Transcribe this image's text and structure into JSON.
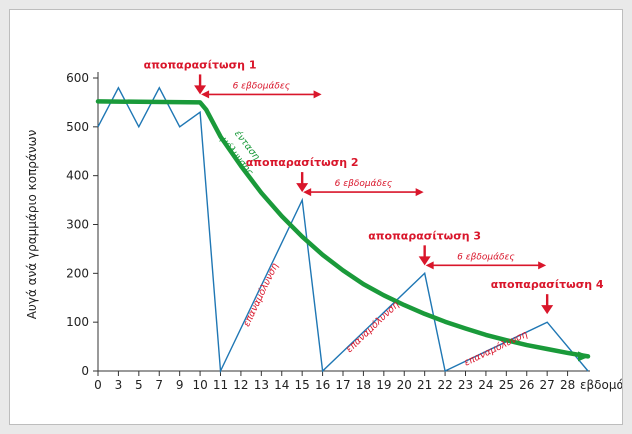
{
  "chart_data": {
    "type": "line",
    "ylabel": "Αυγά ανά γραμμάριο κοπράνων",
    "xlabel_suffix": "εβδομάδες",
    "ylim": [
      0,
      600
    ],
    "y_ticks": [
      0,
      100,
      200,
      300,
      400,
      500,
      600
    ],
    "x_tick_labels": [
      "0",
      "3",
      "5",
      "7",
      "9",
      "10",
      "11",
      "12",
      "13",
      "14",
      "15",
      "16",
      "17",
      "18",
      "19",
      "20",
      "21",
      "22",
      "23",
      "24",
      "25",
      "26",
      "27",
      "28",
      "εβδομάδες"
    ],
    "series": [
      {
        "role": "egg-count",
        "color": "#1f77b4",
        "points": [
          [
            0,
            500
          ],
          [
            1,
            580
          ],
          [
            2,
            500
          ],
          [
            3,
            580
          ],
          [
            4,
            500
          ],
          [
            5,
            530
          ],
          [
            6,
            0
          ],
          [
            10,
            350
          ],
          [
            11,
            0
          ],
          [
            16,
            200
          ],
          [
            17,
            0
          ],
          [
            22,
            100
          ],
          [
            24,
            0
          ]
        ]
      },
      {
        "role": "infection-intensity",
        "color": "#1a9a3a",
        "points": [
          [
            0,
            552
          ],
          [
            5,
            550
          ],
          [
            5.3,
            535
          ],
          [
            6,
            480
          ],
          [
            7,
            420
          ],
          [
            8,
            365
          ],
          [
            9,
            317
          ],
          [
            10,
            275
          ],
          [
            11,
            238
          ],
          [
            12,
            206
          ],
          [
            13,
            178
          ],
          [
            14,
            155
          ],
          [
            15,
            135
          ],
          [
            16,
            117
          ],
          [
            17,
            101
          ],
          [
            18,
            87
          ],
          [
            19,
            74
          ],
          [
            20,
            63
          ],
          [
            21,
            53
          ],
          [
            22,
            45
          ],
          [
            23,
            37
          ],
          [
            24,
            30
          ]
        ]
      }
    ],
    "green_curve_label": [
      "ένταση",
      "μόλυνσης"
    ],
    "annotations": [
      {
        "label": "αποπαρασίτωση 1",
        "duration": "6 εβδομάδες",
        "x_index": 5,
        "y": 550
      },
      {
        "label": "αποπαρασίτωση 2",
        "duration": "6 εβδομάδες",
        "x_index": 10,
        "y": 350
      },
      {
        "label": "αποπαρασίτωση 3",
        "duration": "6 εβδομάδες",
        "x_index": 16,
        "y": 200
      },
      {
        "label": "αποπαρασίτωση 4",
        "duration": "",
        "x_index": 22,
        "y": 100
      }
    ],
    "reinfection_label": "επαναμόλυνση",
    "reinfection_segments": [
      [
        6,
        10
      ],
      [
        11,
        16
      ],
      [
        17,
        22
      ]
    ],
    "accent_color": "#d9162b"
  }
}
